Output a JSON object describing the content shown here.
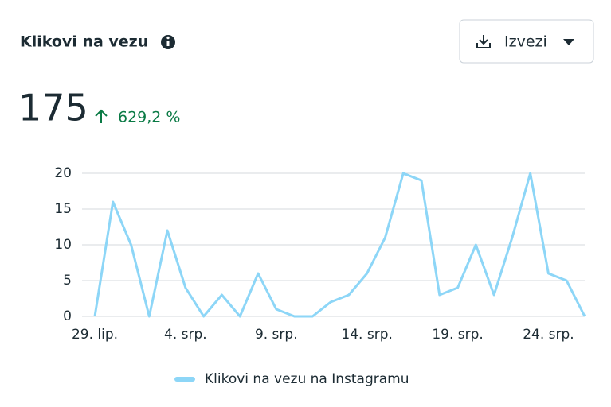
{
  "header": {
    "title": "Klikovi na vezu",
    "export_button": "Izvezi",
    "total": "175",
    "change": "629,2 %"
  },
  "chart_data": {
    "type": "line",
    "categories": [
      "29. lip.",
      null,
      null,
      null,
      null,
      "4. srp.",
      null,
      null,
      null,
      null,
      "9. srp.",
      null,
      null,
      null,
      null,
      "14. srp.",
      null,
      null,
      null,
      null,
      "19. srp.",
      null,
      null,
      null,
      null,
      "24. srp.",
      null,
      null
    ],
    "series": [
      {
        "name": "Klikovi na vezu na Instagramu",
        "color": "#8dd6f7",
        "values": [
          0,
          16,
          10,
          0,
          12,
          4,
          0,
          3,
          0,
          6,
          1,
          0,
          0,
          2,
          3,
          6,
          11,
          20,
          19,
          3,
          4,
          10,
          3,
          11,
          20,
          6,
          5,
          0
        ]
      }
    ],
    "ylim": [
      0,
      20
    ],
    "yticks": [
      0,
      5,
      10,
      15,
      20
    ],
    "grid": true,
    "legend": "bottom"
  }
}
